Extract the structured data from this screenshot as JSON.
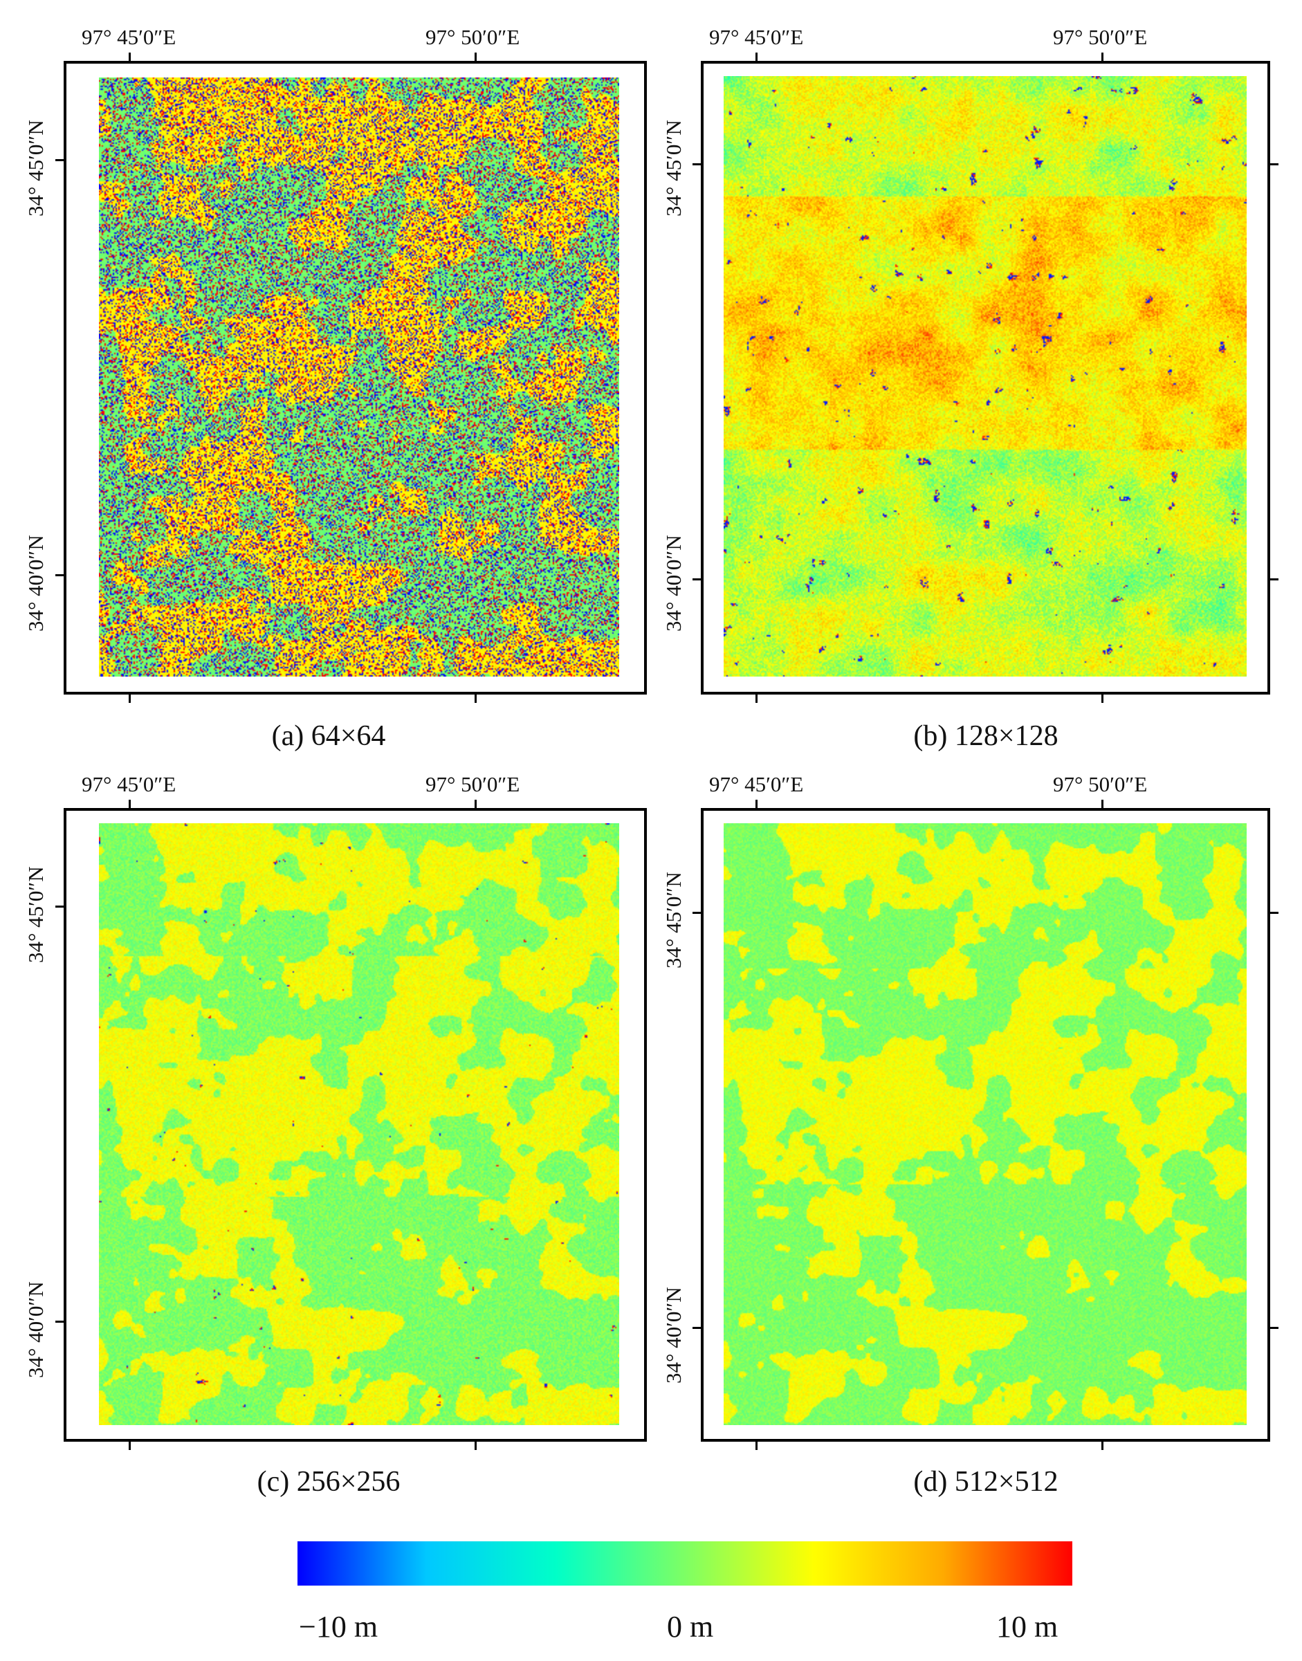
{
  "panels": [
    {
      "id": "a",
      "caption": "(a) 64×64",
      "style": "noisy",
      "lon_labels": [
        "97°  45′0″E",
        "97°  50′0″E"
      ],
      "lat_labels": [
        "34°  45′0″N",
        "34°  40′0″N"
      ]
    },
    {
      "id": "b",
      "caption": "(b) 128×128",
      "style": "orange",
      "lon_labels": [
        "97°  45′0″E",
        "97°  50′0″E"
      ],
      "lat_labels": [
        "34°  45′0″N",
        "34°  40′0″N"
      ]
    },
    {
      "id": "c",
      "caption": "(c) 256×256",
      "style": "mixed",
      "lon_labels": [
        "97°  45′0″E",
        "97°  50′0″E"
      ],
      "lat_labels": [
        "34°  45′0″N",
        "34°  40′0″N"
      ]
    },
    {
      "id": "d",
      "caption": "(d) 512×512",
      "style": "smooth",
      "lon_labels": [
        "97°  45′0″E",
        "97°  50′0″E"
      ],
      "lat_labels": [
        "34°  45′0″N",
        "34°  40′0″N"
      ]
    }
  ],
  "colorbar": {
    "min_label": "−10 m",
    "mid_label": "0 m",
    "max_label": "10 m",
    "colors": [
      "#0000ff",
      "#00c8ff",
      "#00ffc8",
      "#7dff64",
      "#ffff00",
      "#ffaa00",
      "#ff0000"
    ]
  }
}
